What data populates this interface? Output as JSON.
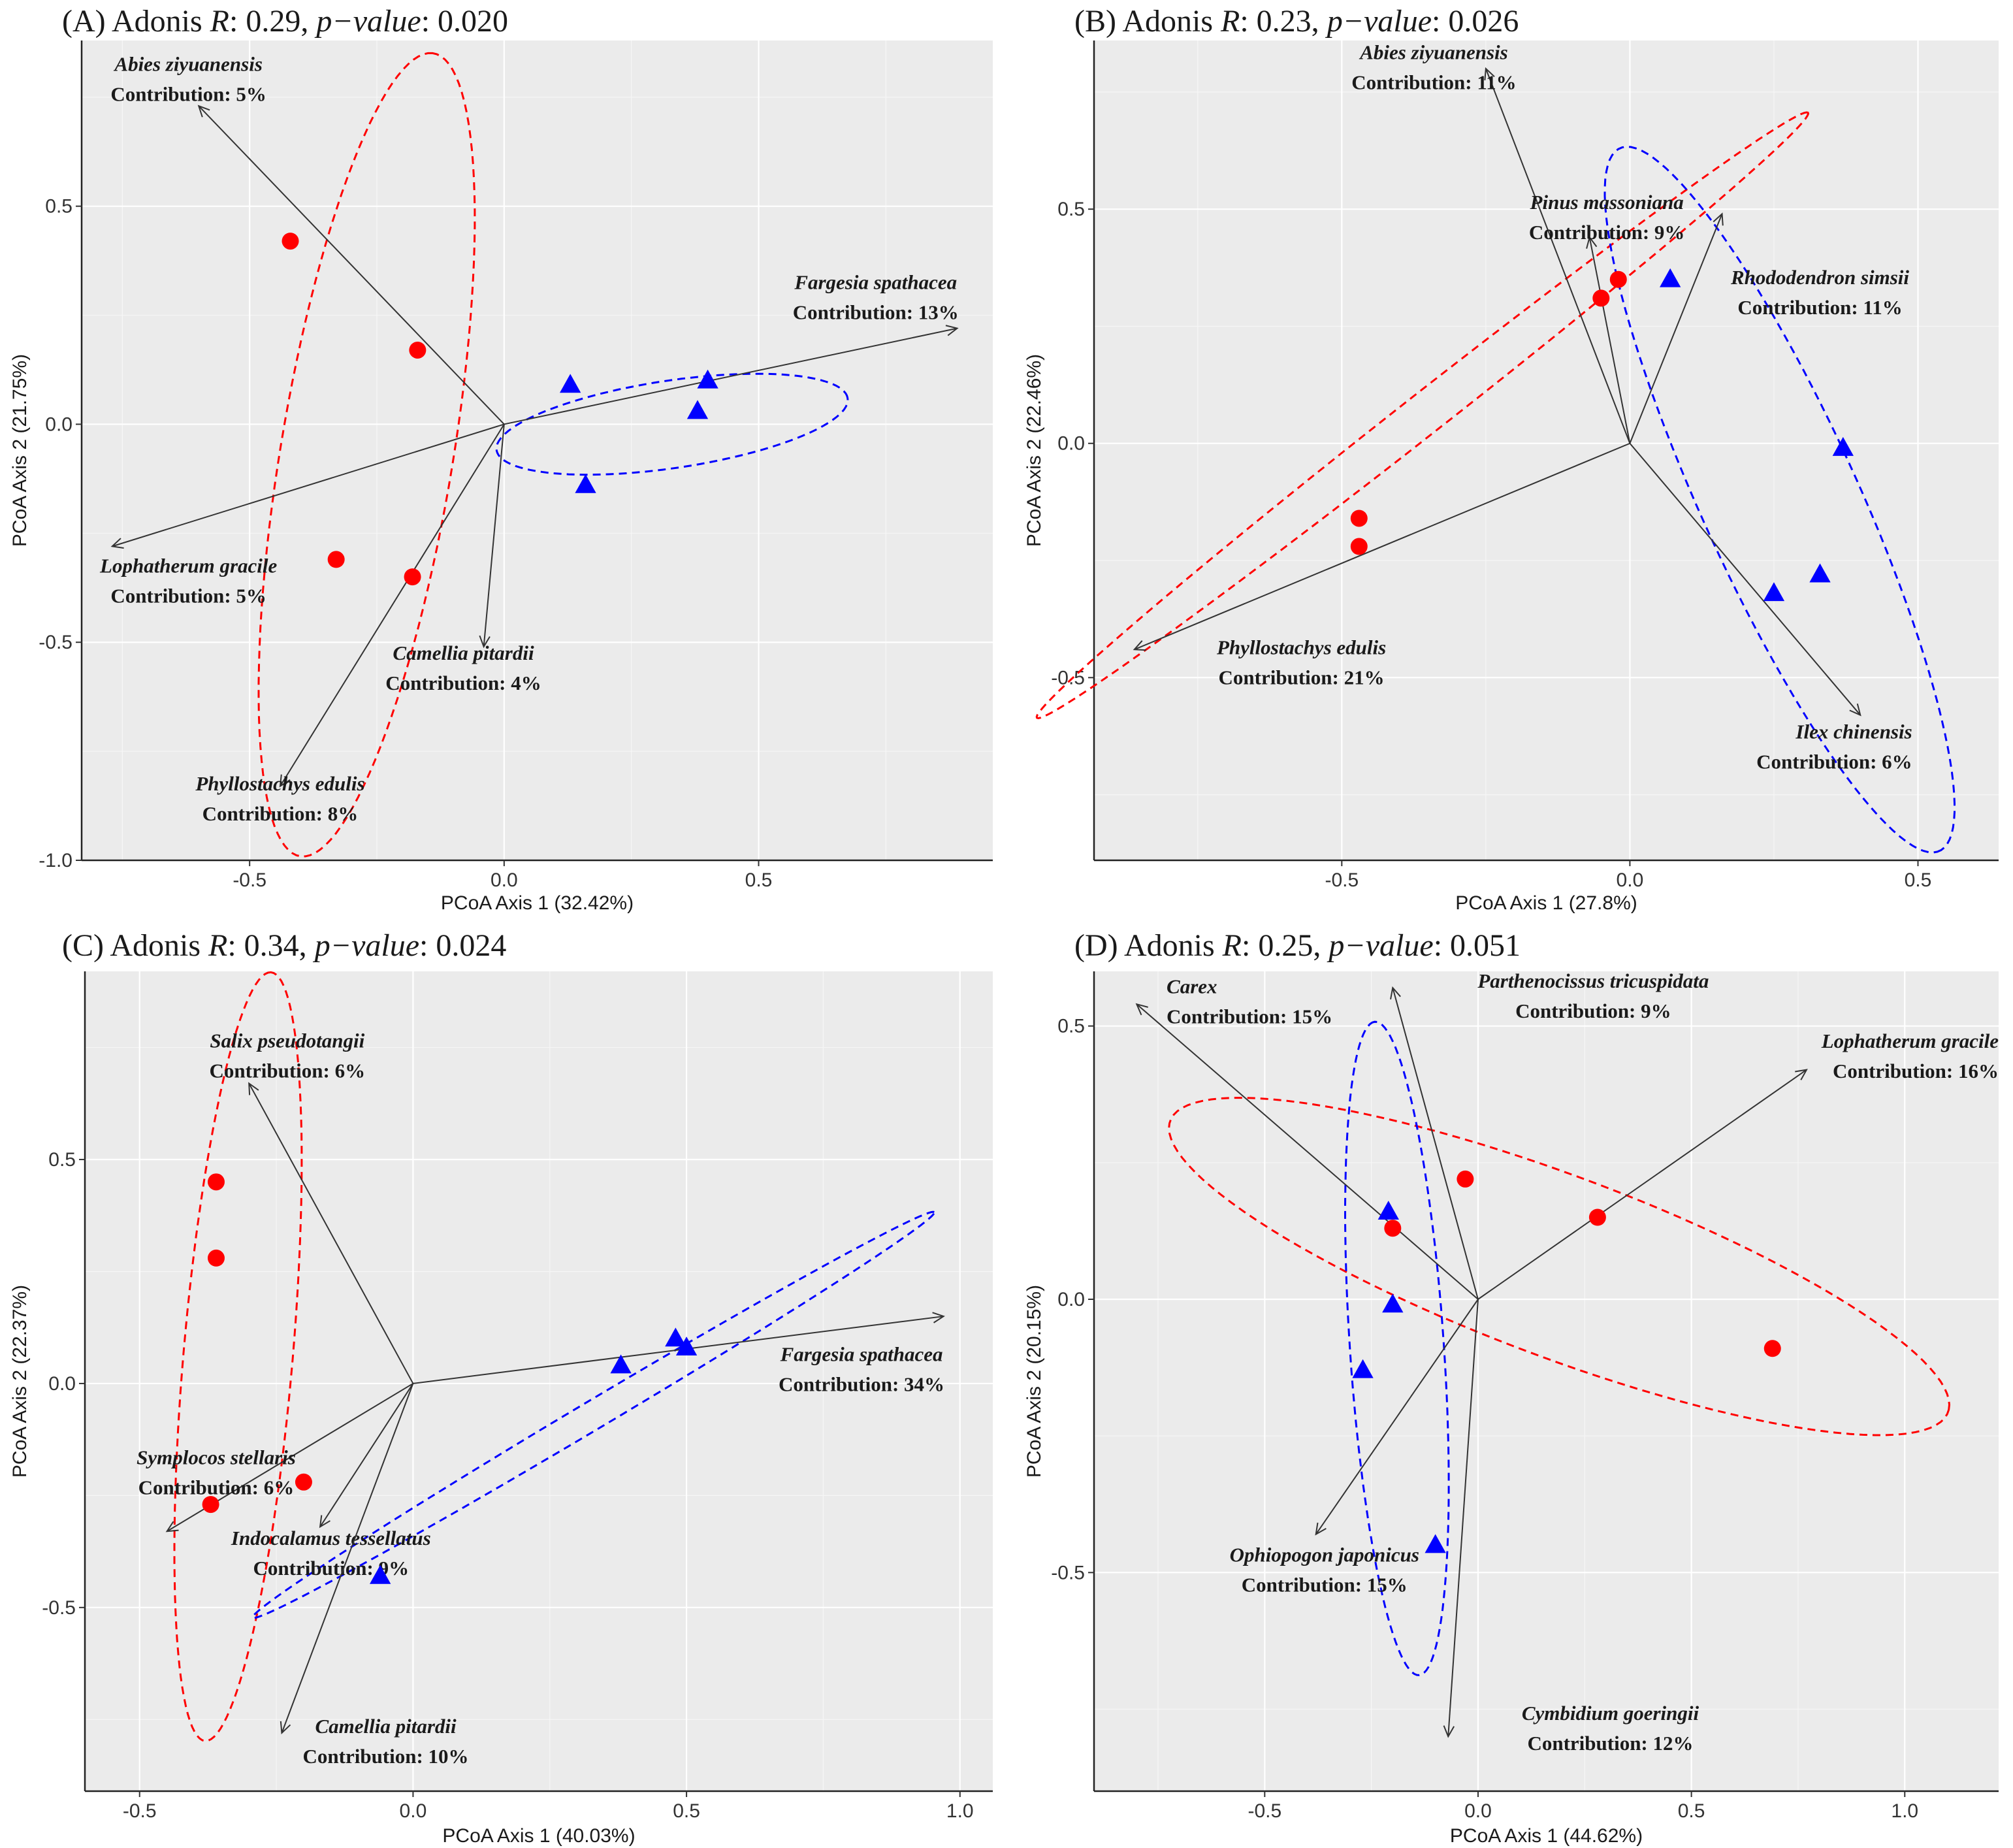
{
  "chart_data": [
    {
      "type": "scatter",
      "panel": "A",
      "title": {
        "prefix": "(A) Adonis ",
        "r_label": "R",
        "r_value": ": 0.29, ",
        "p_label": "p−value",
        "p_value": ": 0.020"
      },
      "xlabel": "PCoA Axis 1 (32.42%)",
      "ylabel": "PCoA Axis 2 (21.75%)",
      "xlim": [
        -0.83,
        0.96
      ],
      "ylim": [
        -1.0,
        0.88
      ],
      "xticks": [
        -0.5,
        0.0,
        0.5
      ],
      "xtick_labels": [
        "-0.5",
        "0.0",
        "0.5"
      ],
      "yticks": [
        -1.0,
        -0.5,
        0.0,
        0.5
      ],
      "ytick_labels": [
        "-1.0",
        "-0.5",
        "0.0",
        "0.5"
      ],
      "series": [
        {
          "name": "group-1",
          "marker": "circle",
          "color": "#ff0000",
          "points": [
            [
              -0.42,
              0.42
            ],
            [
              -0.17,
              0.17
            ],
            [
              -0.33,
              -0.31
            ],
            [
              -0.18,
              -0.35
            ]
          ]
        },
        {
          "name": "group-2",
          "marker": "triangle",
          "color": "#0000ff",
          "points": [
            [
              0.13,
              0.09
            ],
            [
              0.4,
              0.1
            ],
            [
              0.38,
              0.03
            ],
            [
              0.16,
              -0.14
            ]
          ]
        }
      ],
      "ellipses": [
        {
          "color": "#ff0000",
          "center": [
            -0.27,
            -0.07
          ],
          "semi_major": 0.93,
          "semi_minor": 0.17,
          "angle_deg": 82
        },
        {
          "color": "#0000ff",
          "center": [
            0.33,
            0.0
          ],
          "semi_major": 0.35,
          "semi_minor": 0.1,
          "angle_deg": 10
        }
      ],
      "arrows": [
        {
          "species": "Abies ziyuanensis",
          "contribution": "Contribution: 5%",
          "to": [
            -0.6,
            0.73
          ],
          "label_at": [
            -0.62,
            0.81
          ],
          "anchor": "middle"
        },
        {
          "species": "Fargesia spathacea",
          "contribution": "Contribution: 13%",
          "to": [
            0.89,
            0.22
          ],
          "label_at": [
            0.73,
            0.31
          ],
          "anchor": "middle"
        },
        {
          "species": "Lophatherum gracile",
          "contribution": "Contribution: 5%",
          "to": [
            -0.77,
            -0.28
          ],
          "label_at": [
            -0.62,
            -0.34
          ],
          "anchor": "middle"
        },
        {
          "species": "Camellia pitardii",
          "contribution": "Contribution: 4%",
          "to": [
            -0.04,
            -0.51
          ],
          "label_at": [
            -0.08,
            -0.54
          ],
          "anchor": "middle"
        },
        {
          "species": "Phyllostachys edulis",
          "contribution": "Contribution: 8%",
          "to": [
            -0.44,
            -0.83
          ],
          "label_at": [
            -0.44,
            -0.84
          ],
          "anchor": "middle"
        }
      ]
    },
    {
      "type": "scatter",
      "panel": "B",
      "title": {
        "prefix": "(B) Adonis ",
        "r_label": "R",
        "r_value": ": 0.23, ",
        "p_label": "p−value",
        "p_value": ": 0.026"
      },
      "xlabel": "PCoA Axis 1 (27.8%)",
      "ylabel": "PCoA Axis 2 (22.46%)",
      "xlim": [
        -0.93,
        0.64
      ],
      "ylim": [
        -0.89,
        0.86
      ],
      "xticks": [
        -0.5,
        0.0,
        0.5
      ],
      "xtick_labels": [
        "-0.5",
        "0.0",
        "0.5"
      ],
      "yticks": [
        -0.5,
        0.0,
        0.5
      ],
      "ytick_labels": [
        "-0.5",
        "0.0",
        "0.5"
      ],
      "series": [
        {
          "name": "group-1",
          "marker": "circle",
          "color": "#ff0000",
          "points": [
            [
              -0.02,
              0.35
            ],
            [
              -0.05,
              0.31
            ],
            [
              -0.47,
              -0.16
            ],
            [
              -0.47,
              -0.22
            ]
          ]
        },
        {
          "name": "group-2",
          "marker": "triangle",
          "color": "#0000ff",
          "points": [
            [
              0.07,
              0.35
            ],
            [
              0.37,
              -0.01
            ],
            [
              0.33,
              -0.28
            ],
            [
              0.25,
              -0.32
            ]
          ]
        }
      ],
      "ellipses": [
        {
          "color": "#ff0000",
          "center": [
            -0.36,
            0.06
          ],
          "semi_major": 0.93,
          "semi_minor": 0.04,
          "angle_deg": 44
        },
        {
          "color": "#0000ff",
          "center": [
            0.26,
            -0.12
          ],
          "semi_major": 0.8,
          "semi_minor": 0.14,
          "angle_deg": -70
        }
      ],
      "arrows": [
        {
          "species": "Abies ziyuanensis",
          "contribution": "Contribution: 11%",
          "to": [
            -0.25,
            0.8
          ],
          "label_at": [
            -0.34,
            0.82
          ],
          "anchor": "middle"
        },
        {
          "species": "Pinus massoniana",
          "contribution": "Contribution: 9%",
          "to": [
            -0.07,
            0.44
          ],
          "label_at": [
            -0.04,
            0.5
          ],
          "anchor": "middle"
        },
        {
          "species": "Rhododendron simsii",
          "contribution": "Contribution: 11%",
          "to": [
            0.16,
            0.49
          ],
          "label_at": [
            0.33,
            0.34
          ],
          "anchor": "middle"
        },
        {
          "species": "Phyllostachys edulis",
          "contribution": "Contribution: 21%",
          "to": [
            -0.86,
            -0.44
          ],
          "label_at": [
            -0.57,
            -0.45
          ],
          "anchor": "middle"
        },
        {
          "species": "Ilex chinensis",
          "contribution": "Contribution: 6%",
          "to": [
            0.4,
            -0.58
          ],
          "label_at": [
            0.49,
            -0.63
          ],
          "anchor": "end"
        }
      ]
    },
    {
      "type": "scatter",
      "panel": "C",
      "title": {
        "prefix": "(C) Adonis ",
        "r_label": "R",
        "r_value": ": 0.34, ",
        "p_label": "p−value",
        "p_value": ": 0.024"
      },
      "xlabel": "PCoA Axis 1 (40.03%)",
      "ylabel": "PCoA Axis 2 (22.37%)",
      "xlim": [
        -0.6,
        1.06
      ],
      "ylim": [
        -0.91,
        0.92
      ],
      "xticks": [
        -0.5,
        0.0,
        0.5,
        1.0
      ],
      "xtick_labels": [
        "-0.5",
        "0.0",
        "0.5",
        "1.0"
      ],
      "yticks": [
        -0.5,
        0.0,
        0.5
      ],
      "ytick_labels": [
        "-0.5",
        "0.0",
        "0.5"
      ],
      "series": [
        {
          "name": "group-1",
          "marker": "circle",
          "color": "#ff0000",
          "points": [
            [
              -0.36,
              0.45
            ],
            [
              -0.36,
              0.28
            ],
            [
              -0.2,
              -0.22
            ],
            [
              -0.37,
              -0.27
            ]
          ]
        },
        {
          "name": "group-2",
          "marker": "triangle",
          "color": "#0000ff",
          "points": [
            [
              0.48,
              0.1
            ],
            [
              0.5,
              0.08
            ],
            [
              0.38,
              0.04
            ],
            [
              -0.06,
              -0.43
            ]
          ]
        }
      ],
      "ellipses": [
        {
          "color": "#ff0000",
          "center": [
            -0.32,
            0.06
          ],
          "semi_major": 0.86,
          "semi_minor": 0.1,
          "angle_deg": 86
        },
        {
          "color": "#0000ff",
          "center": [
            0.33,
            -0.07
          ],
          "semi_major": 0.77,
          "semi_minor": 0.03,
          "angle_deg": 36
        }
      ],
      "arrows": [
        {
          "species": "Salix pseudotangii",
          "contribution": "Contribution: 6%",
          "to": [
            -0.3,
            0.67
          ],
          "label_at": [
            -0.23,
            0.75
          ],
          "anchor": "middle"
        },
        {
          "species": "Fargesia spathacea",
          "contribution": "Contribution: 34%",
          "to": [
            0.97,
            0.15
          ],
          "label_at": [
            0.82,
            0.05
          ],
          "anchor": "middle"
        },
        {
          "species": "Symplocos stellaris",
          "contribution": "Contribution: 6%",
          "to": [
            -0.45,
            -0.33
          ],
          "label_at": [
            -0.36,
            -0.18
          ],
          "anchor": "middle"
        },
        {
          "species": "Indocalamus tessellatus",
          "contribution": "Contribution: 9%",
          "to": [
            -0.17,
            -0.32
          ],
          "label_at": [
            -0.15,
            -0.36
          ],
          "anchor": "middle"
        },
        {
          "species": "Camellia pitardii",
          "contribution": "Contribution: 10%",
          "to": [
            -0.24,
            -0.78
          ],
          "label_at": [
            -0.05,
            -0.78
          ],
          "anchor": "middle"
        }
      ]
    },
    {
      "type": "scatter",
      "panel": "D",
      "title": {
        "prefix": "(D) Adonis ",
        "r_label": "R",
        "r_value": ": 0.25, ",
        "p_label": "p−value",
        "p_value": ": 0.051"
      },
      "xlabel": "PCoA Axis 1 (44.62%)",
      "ylabel": "PCoA Axis 2 (20.15%)",
      "xlim": [
        -0.9,
        1.22
      ],
      "ylim": [
        -0.9,
        0.6
      ],
      "xticks": [
        -0.5,
        0.0,
        0.5,
        1.0
      ],
      "xtick_labels": [
        "-0.5",
        "0.0",
        "0.5",
        "1.0"
      ],
      "yticks": [
        -0.5,
        0.0,
        0.5
      ],
      "ytick_labels": [
        "-0.5",
        "0.0",
        "0.5"
      ],
      "series": [
        {
          "name": "group-1",
          "marker": "circle",
          "color": "#ff0000",
          "points": [
            [
              -0.03,
              0.22
            ],
            [
              0.28,
              0.15
            ],
            [
              -0.2,
              0.13
            ],
            [
              0.69,
              -0.09
            ]
          ]
        },
        {
          "name": "group-2",
          "marker": "triangle",
          "color": "#0000ff",
          "points": [
            [
              -0.21,
              0.16
            ],
            [
              -0.2,
              -0.01
            ],
            [
              -0.27,
              -0.13
            ],
            [
              -0.1,
              -0.45
            ]
          ]
        }
      ],
      "ellipses": [
        {
          "color": "#ff0000",
          "center": [
            0.19,
            0.06
          ],
          "semi_major": 0.95,
          "semi_minor": 0.17,
          "angle_deg": -16
        },
        {
          "color": "#0000ff",
          "center": [
            -0.19,
            -0.09
          ],
          "semi_major": 0.6,
          "semi_minor": 0.11,
          "angle_deg": 95
        }
      ],
      "arrows": [
        {
          "species": "Carex",
          "contribution": "Contribution: 15%",
          "to": [
            -0.8,
            0.54
          ],
          "label_at": [
            -0.73,
            0.56
          ],
          "anchor": "start"
        },
        {
          "species": "Parthenocissus tricuspidata",
          "contribution": "Contribution: 9%",
          "to": [
            -0.2,
            0.57
          ],
          "label_at": [
            0.27,
            0.57
          ],
          "anchor": "middle"
        },
        {
          "species": "Lophatherum gracile",
          "contribution": "Contribution: 16%",
          "to": [
            0.77,
            0.42
          ],
          "label_at": [
            1.22,
            0.46
          ],
          "anchor": "end"
        },
        {
          "species": "Ophiopogon japonicus",
          "contribution": "Contribution: 15%",
          "to": [
            -0.38,
            -0.43
          ],
          "label_at": [
            -0.36,
            -0.48
          ],
          "anchor": "middle"
        },
        {
          "species": "Cymbidium goeringii",
          "contribution": "Contribution: 12%",
          "to": [
            -0.07,
            -0.8
          ],
          "label_at": [
            0.31,
            -0.77
          ],
          "anchor": "middle"
        }
      ]
    }
  ]
}
